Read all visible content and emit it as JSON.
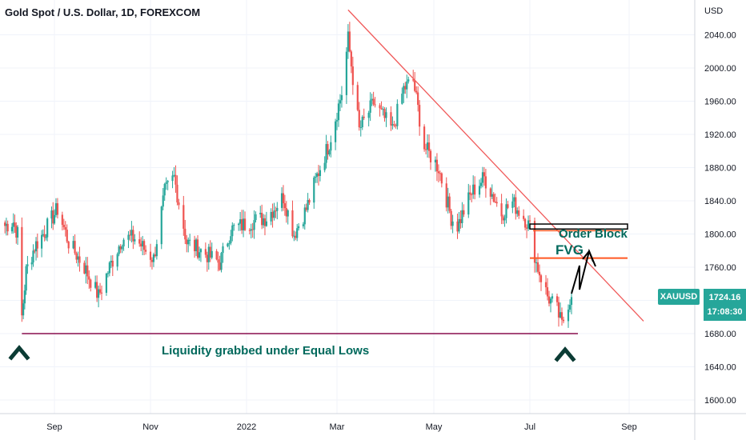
{
  "header": {
    "title": "Gold Spot / U.S. Dollar, 1D, FOREXCOM",
    "currency": "USD"
  },
  "price_tag": {
    "symbol": "XAUUSD",
    "price": "1724.16",
    "countdown": "17:08:30"
  },
  "annotations": {
    "order_block": "Order Block",
    "fvg": "FVG",
    "liquidity": "Liquidity grabbed under Equal Lows"
  },
  "colors": {
    "up": "#26a69a",
    "down": "#ef5350",
    "trendline": "#f05a5a",
    "support": "#880e4f",
    "fvg_line": "#ff5722",
    "annotation_text": "#00695c"
  },
  "chart_data": {
    "type": "candlestick",
    "title": "Gold Spot / U.S. Dollar, 1D, FOREXCOM",
    "ylabel": "USD",
    "ylim": [
      1565,
      2080
    ],
    "x_ticks": [
      "Sep",
      "Nov",
      "2022",
      "Mar",
      "May",
      "Jul",
      "Sep"
    ],
    "y_ticks": [
      "2040.00",
      "2000.00",
      "1960.00",
      "1920.00",
      "1880.00",
      "1840.00",
      "1800.00",
      "1760.00",
      "1720.00",
      "1680.00",
      "1640.00",
      "1600.00"
    ],
    "path": [
      [
        "2021-07-28",
        1810
      ],
      [
        "2021-08-03",
        1815
      ],
      [
        "2021-08-06",
        1800
      ],
      [
        "2021-08-09",
        1700
      ],
      [
        "2021-08-12",
        1755
      ],
      [
        "2021-08-18",
        1785
      ],
      [
        "2021-08-24",
        1800
      ],
      [
        "2021-09-03",
        1830
      ],
      [
        "2021-09-10",
        1790
      ],
      [
        "2021-09-20",
        1760
      ],
      [
        "2021-09-29",
        1725
      ],
      [
        "2021-10-06",
        1760
      ],
      [
        "2021-10-14",
        1795
      ],
      [
        "2021-10-22",
        1795
      ],
      [
        "2021-10-28",
        1782
      ],
      [
        "2021-11-03",
        1770
      ],
      [
        "2021-11-10",
        1850
      ],
      [
        "2021-11-16",
        1868
      ],
      [
        "2021-11-24",
        1790
      ],
      [
        "2021-12-03",
        1780
      ],
      [
        "2021-12-15",
        1765
      ],
      [
        "2021-12-22",
        1805
      ],
      [
        "2022-01-04",
        1815
      ],
      [
        "2022-01-14",
        1820
      ],
      [
        "2022-01-25",
        1845
      ],
      [
        "2022-02-01",
        1800
      ],
      [
        "2022-02-09",
        1830
      ],
      [
        "2022-02-16",
        1870
      ],
      [
        "2022-02-24",
        1910
      ],
      [
        "2022-03-04",
        1970
      ],
      [
        "2022-03-08",
        2035
      ],
      [
        "2022-03-15",
        1925
      ],
      [
        "2022-03-24",
        1958
      ],
      [
        "2022-04-05",
        1925
      ],
      [
        "2022-04-12",
        1975
      ],
      [
        "2022-04-18",
        1985
      ],
      [
        "2022-04-25",
        1905
      ],
      [
        "2022-05-04",
        1880
      ],
      [
        "2022-05-12",
        1820
      ],
      [
        "2022-05-16",
        1810
      ],
      [
        "2022-05-25",
        1850
      ],
      [
        "2022-06-02",
        1868
      ],
      [
        "2022-06-13",
        1825
      ],
      [
        "2022-06-20",
        1838
      ],
      [
        "2022-06-28",
        1818
      ],
      [
        "2022-07-01",
        1808
      ],
      [
        "2022-07-05",
        1765
      ],
      [
        "2022-07-12",
        1725
      ],
      [
        "2022-07-18",
        1708
      ],
      [
        "2022-07-21",
        1690
      ],
      [
        "2022-07-25",
        1718
      ],
      [
        "2022-07-27",
        1724
      ]
    ],
    "drawings": {
      "trendline": [
        [
          "2022-03-08",
          2070
        ],
        [
          "2022-09-10",
          1695
        ]
      ],
      "equal_lows_line": [
        [
          "2021-08-09",
          1680
        ],
        [
          "2022-07-31",
          1680
        ]
      ],
      "order_block_zone": [
        [
          "2022-07-01",
          1812
        ],
        [
          "2022-08-31",
          1806
        ]
      ],
      "fvg_line": [
        [
          "2022-07-01",
          1771
        ],
        [
          "2022-08-31",
          1771
        ]
      ],
      "order_block_level": [
        [
          "2022-07-03",
          1804
        ],
        [
          "2022-08-28",
          1804
        ]
      ]
    }
  }
}
